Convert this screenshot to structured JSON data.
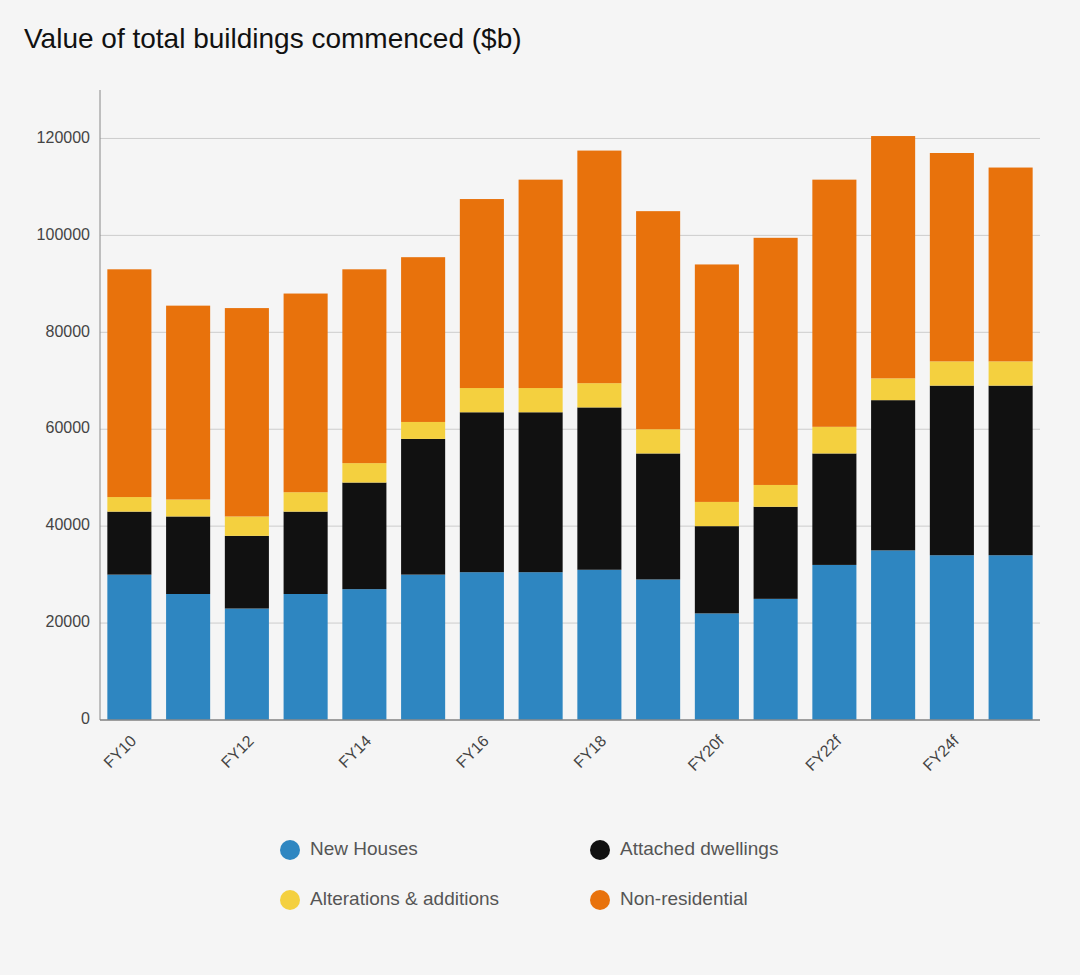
{
  "chart_data": {
    "type": "bar",
    "stacked": true,
    "title": "Value of total buildings commenced ($b)",
    "categories": [
      "FY10",
      null,
      "FY12",
      null,
      "FY14",
      null,
      "FY16",
      null,
      "FY18",
      null,
      "FY20f",
      null,
      "FY22f",
      null,
      "FY24f",
      null
    ],
    "series": [
      {
        "name": "New Houses",
        "color": "#2E86C1",
        "values": [
          30000,
          26000,
          23000,
          26000,
          27000,
          30000,
          30500,
          30500,
          31000,
          29000,
          22000,
          25000,
          32000,
          35000,
          34000,
          34000
        ]
      },
      {
        "name": "Attached dwellings",
        "color": "#111111",
        "values": [
          13000,
          16000,
          15000,
          17000,
          22000,
          28000,
          33000,
          33000,
          33500,
          26000,
          18000,
          19000,
          23000,
          31000,
          35000,
          35000
        ]
      },
      {
        "name": "Alterations & additions",
        "color": "#F4D03F",
        "values": [
          3000,
          3500,
          4000,
          4000,
          4000,
          3500,
          5000,
          5000,
          5000,
          5000,
          5000,
          4500,
          5500,
          4500,
          5000,
          5000
        ]
      },
      {
        "name": "Non-residential",
        "color": "#E8720C",
        "values": [
          47000,
          40000,
          43000,
          41000,
          40000,
          34000,
          39000,
          43000,
          48000,
          45000,
          49000,
          51000,
          51000,
          50000,
          43000,
          40000
        ]
      }
    ],
    "ylim": [
      0,
      130000
    ],
    "yticks": [
      0,
      20000,
      40000,
      60000,
      80000,
      100000,
      120000
    ],
    "grid": true,
    "legend": "bottom"
  }
}
